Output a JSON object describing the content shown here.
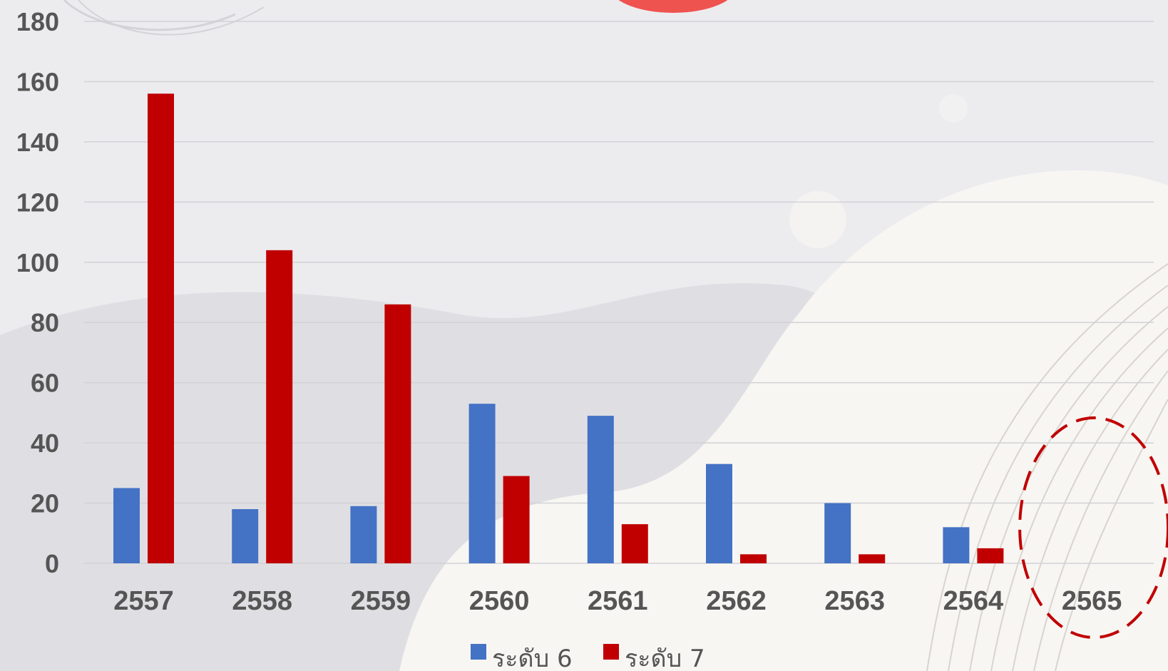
{
  "chart_data": {
    "type": "bar",
    "title": "",
    "xlabel": "",
    "ylabel": "",
    "ylim": [
      0,
      180
    ],
    "yticks": [
      0,
      20,
      40,
      60,
      80,
      100,
      120,
      140,
      160,
      180
    ],
    "grid": true,
    "legend_position": "bottom",
    "categories": [
      "2557",
      "2558",
      "2559",
      "2560",
      "2561",
      "2562",
      "2563",
      "2564",
      "2565"
    ],
    "series": [
      {
        "name": "ระดับ 6",
        "color": "#4472c4",
        "values": [
          25,
          18,
          19,
          53,
          49,
          33,
          20,
          12,
          null
        ]
      },
      {
        "name": "ระดับ 7",
        "color": "#c00000",
        "values": [
          156,
          104,
          86,
          29,
          13,
          3,
          3,
          5,
          null
        ]
      }
    ],
    "annotations": [
      {
        "type": "dashed-ellipse",
        "target_category": "2565",
        "color": "#c00000"
      }
    ]
  }
}
